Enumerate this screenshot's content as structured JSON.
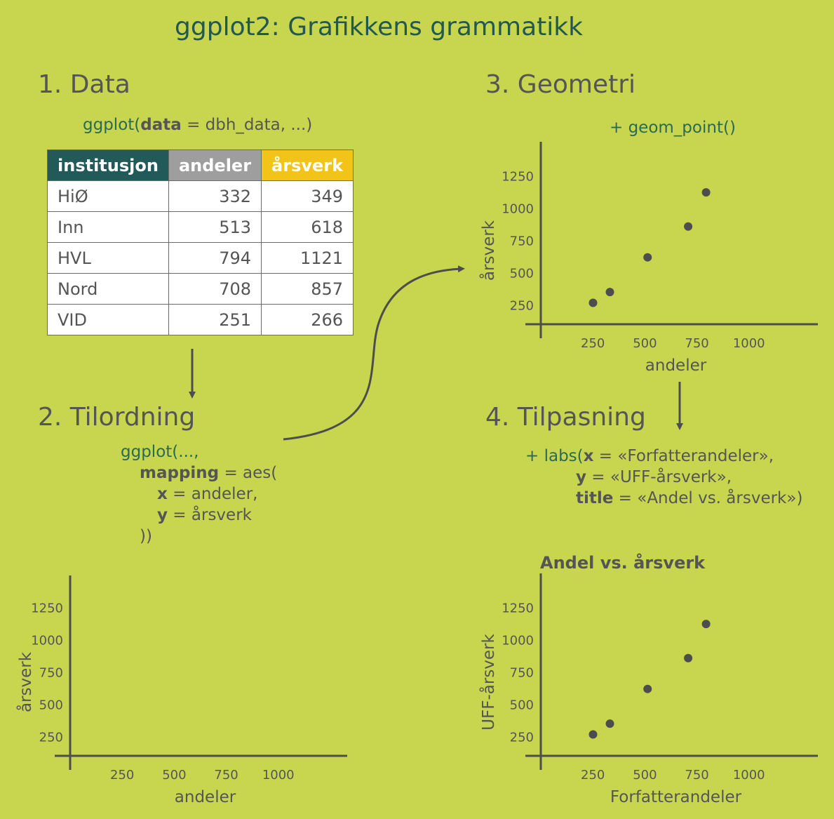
{
  "title": "ggplot2: Grafikkens grammatikk",
  "steps": {
    "s1": "1. Data",
    "s2": "2. Tilordning",
    "s3": "3. Geometri",
    "s4": "4. Tilpasning"
  },
  "code1": {
    "fn": "ggplot(",
    "arg": "data",
    "rest": " = dbh_data, ...)"
  },
  "code2": {
    "l1": "ggplot(...,",
    "l2_arg": "mapping",
    "l2_rest": " = aes(",
    "l3_arg": "x",
    "l3_rest": " = andeler,",
    "l4_arg": "y",
    "l4_rest": " = årsverk",
    "l5": "))"
  },
  "code3": "+ geom_point()",
  "code4": {
    "l1_pre": "+ labs(",
    "l1_arg": "x",
    "l1_rest": " = «Forfatterandeler»,",
    "l2_arg": "y",
    "l2_rest": " = «UFF-årsverk»,",
    "l3_arg": "title",
    "l3_rest": " = «Andel vs. årsverk»)"
  },
  "table": {
    "headers": [
      "institusjon",
      "andeler",
      "årsverk"
    ],
    "header_colors": [
      "#225a5a",
      "#9e9e9e",
      "#f2c318"
    ],
    "rows": [
      [
        "HiØ",
        "332",
        "349"
      ],
      [
        "Inn",
        "513",
        "618"
      ],
      [
        "HVL",
        "794",
        "1121"
      ],
      [
        "Nord",
        "708",
        "857"
      ],
      [
        "VID",
        "251",
        "266"
      ]
    ]
  },
  "chart_data": [
    {
      "type": "scatter",
      "id": "empty",
      "xlabel": "andeler",
      "ylabel": "årsverk",
      "x_ticks": [
        250,
        500,
        750,
        1000
      ],
      "y_ticks": [
        250,
        500,
        750,
        1000,
        1250
      ],
      "xlim": [
        0,
        1230
      ],
      "ylim": [
        100,
        1350
      ],
      "points": []
    },
    {
      "type": "scatter",
      "id": "geom",
      "xlabel": "andeler",
      "ylabel": "årsverk",
      "x_ticks": [
        250,
        500,
        750,
        1000
      ],
      "y_ticks": [
        250,
        500,
        750,
        1000,
        1250
      ],
      "xlim": [
        0,
        1230
      ],
      "ylim": [
        100,
        1350
      ],
      "points": [
        [
          332,
          349
        ],
        [
          513,
          618
        ],
        [
          794,
          1121
        ],
        [
          708,
          857
        ],
        [
          251,
          266
        ]
      ]
    },
    {
      "type": "scatter",
      "id": "labs",
      "title": "Andel vs. årsverk",
      "xlabel": "Forfatterandeler",
      "ylabel": "UFF-årsverk",
      "x_ticks": [
        250,
        500,
        750,
        1000
      ],
      "y_ticks": [
        250,
        500,
        750,
        1000,
        1250
      ],
      "xlim": [
        0,
        1230
      ],
      "ylim": [
        100,
        1350
      ],
      "points": [
        [
          332,
          349
        ],
        [
          513,
          618
        ],
        [
          794,
          1121
        ],
        [
          708,
          857
        ],
        [
          251,
          266
        ]
      ]
    }
  ]
}
